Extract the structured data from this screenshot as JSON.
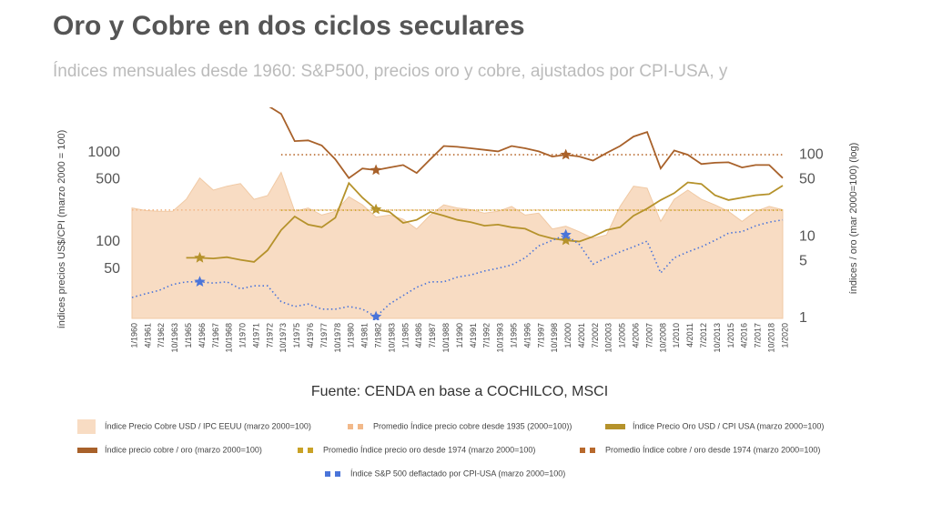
{
  "chart_data": {
    "type": "line",
    "title": "Oro y Cobre en dos ciclos seculares",
    "subtitle": "Índices mensuales desde 1960: S&P500, precios oro y cobre, ajustados por CPI-USA, y",
    "source": "Fuente: CENDA en base a COCHILCO, MSCI",
    "y_label": "índices precios US$/CPI (marzo 2000 = 100)",
    "y2_label": "índices / oro (mar 2000=100) (log)",
    "categories": [
      "1/1960",
      "4/1961",
      "7/1962",
      "10/1963",
      "1/1965",
      "4/1966",
      "7/1967",
      "10/1968",
      "1/1970",
      "4/1971",
      "7/1972",
      "10/1973",
      "1/1975",
      "4/1976",
      "7/1977",
      "10/1978",
      "1/1980",
      "4/1981",
      "7/1982",
      "10/1983",
      "1/1985",
      "4/1986",
      "7/1987",
      "10/1988",
      "1/1990",
      "4/1991",
      "7/1992",
      "10/1993",
      "1/1995",
      "4/1996",
      "7/1997",
      "10/1998",
      "1/2000",
      "4/2001",
      "7/2002",
      "10/2003",
      "1/2005",
      "4/2006",
      "7/2007",
      "10/2008",
      "1/2010",
      "4/2011",
      "7/2012",
      "10/2013",
      "1/2015",
      "4/2016",
      "7/2017",
      "10/2018",
      "1/2020"
    ],
    "ylim": [
      14,
      3200
    ],
    "yticks": [
      50,
      100,
      500,
      1000
    ],
    "ylog": true,
    "y2lim": [
      1,
      380
    ],
    "y2ticks": [
      1,
      5,
      10,
      50,
      100
    ],
    "y2log": true,
    "star_at": [
      "4/1966",
      "7/1982",
      "1/2000"
    ],
    "series": [
      {
        "name": "Índice Precio Cobre USD / IPC EEUU (marzo 2000=100)",
        "style": "area",
        "color": "#f8dcc3",
        "axis": "y",
        "values": [
          240,
          225,
          220,
          220,
          300,
          520,
          380,
          420,
          450,
          300,
          330,
          600,
          220,
          240,
          200,
          220,
          320,
          260,
          190,
          200,
          180,
          140,
          200,
          260,
          240,
          230,
          210,
          220,
          250,
          200,
          210,
          140,
          150,
          130,
          110,
          120,
          250,
          420,
          400,
          170,
          300,
          380,
          300,
          260,
          220,
          170,
          220,
          250,
          230
        ]
      },
      {
        "name": "Promedio Índice precio cobre desde 1935 (2000=100))",
        "style": "dotted",
        "color": "#f2b98a",
        "axis": "y",
        "values": [
          228,
          228,
          228,
          228,
          228,
          228,
          228,
          228,
          228,
          228,
          228,
          228,
          228,
          228,
          228,
          228,
          228,
          228,
          228,
          228,
          228,
          228,
          228,
          228,
          228,
          228,
          228,
          228,
          228,
          228,
          228,
          228,
          228,
          228,
          228,
          228,
          228,
          228,
          228,
          228,
          228,
          228,
          228,
          228,
          228,
          228,
          228,
          228,
          228
        ]
      },
      {
        "name": "Índice Precio Oro USD / CPI USA (marzo 2000=100)",
        "style": "line",
        "color": "#b5922b",
        "axis": "y2",
        "stars": true,
        "values": [
          null,
          null,
          null,
          null,
          5.5,
          5.5,
          5.4,
          5.6,
          5.2,
          4.9,
          6.8,
          12,
          17.6,
          14,
          13,
          17,
          45,
          30,
          21.5,
          20,
          14.7,
          16,
          20,
          18,
          16,
          15,
          13.6,
          14,
          13,
          12.5,
          10.5,
          9.5,
          9,
          8.7,
          10,
          12,
          13,
          18,
          22,
          28,
          34,
          46,
          44,
          32,
          28,
          30,
          32,
          33,
          42
        ]
      },
      {
        "name": "Índice precio cobre / oro (marzo 2000=100)",
        "style": "line",
        "color": "#a8612a",
        "axis": "y2",
        "stars": true,
        "values": [
          null,
          null,
          null,
          null,
          null,
          null,
          null,
          null,
          null,
          null,
          400,
          316,
          147,
          150,
          130,
          88,
          52,
          68,
          65,
          70,
          75,
          60,
          88,
          128,
          125,
          120,
          115,
          110,
          128,
          120,
          110,
          95,
          100,
          95,
          85,
          105,
          128,
          167,
          190,
          68,
          113,
          100,
          77,
          80,
          81,
          70,
          75,
          75,
          52
        ]
      },
      {
        "name": "Promedio Índice precio oro desde 1974 (marzo 2000=100)",
        "style": "dotted",
        "color": "#c9a227",
        "axis": "y2",
        "values": [
          null,
          null,
          null,
          null,
          null,
          null,
          null,
          null,
          null,
          null,
          null,
          21,
          21,
          21,
          21,
          21,
          21,
          21,
          21,
          21,
          21,
          21,
          21,
          21,
          21,
          21,
          21,
          21,
          21,
          21,
          21,
          21,
          21,
          21,
          21,
          21,
          21,
          21,
          21,
          21,
          21,
          21,
          21,
          21,
          21,
          21,
          21,
          21,
          21
        ]
      },
      {
        "name": "Promedio Índice cobre / oro desde 1974 (marzo 2000=100)",
        "style": "dotted",
        "color": "#b8692d",
        "axis": "y2",
        "values": [
          null,
          null,
          null,
          null,
          null,
          null,
          null,
          null,
          null,
          null,
          null,
          100,
          100,
          100,
          100,
          100,
          100,
          100,
          100,
          100,
          100,
          100,
          100,
          100,
          100,
          100,
          100,
          100,
          100,
          100,
          100,
          100,
          100,
          100,
          100,
          100,
          100,
          100,
          100,
          100,
          100,
          100,
          100,
          100,
          100,
          100,
          100,
          100,
          100
        ]
      },
      {
        "name": "Índice S&P 500 deflactado por CPI-USA (marzo 2000=100)",
        "style": "dotted",
        "color": "#4a74d9",
        "axis": "y2",
        "stars": true,
        "values": [
          1.8,
          2.0,
          2.2,
          2.6,
          2.8,
          2.8,
          2.7,
          2.8,
          2.3,
          2.5,
          2.5,
          1.6,
          1.4,
          1.5,
          1.3,
          1.3,
          1.4,
          1.3,
          1.05,
          1.5,
          1.9,
          2.4,
          2.8,
          2.8,
          3.2,
          3.4,
          3.8,
          4.1,
          4.5,
          5.5,
          7.7,
          9,
          10.5,
          8,
          4.6,
          5.5,
          6.5,
          7.5,
          8.8,
          3.6,
          5.5,
          6.5,
          7.5,
          9,
          11,
          11.5,
          13.5,
          15,
          16
        ]
      }
    ]
  }
}
